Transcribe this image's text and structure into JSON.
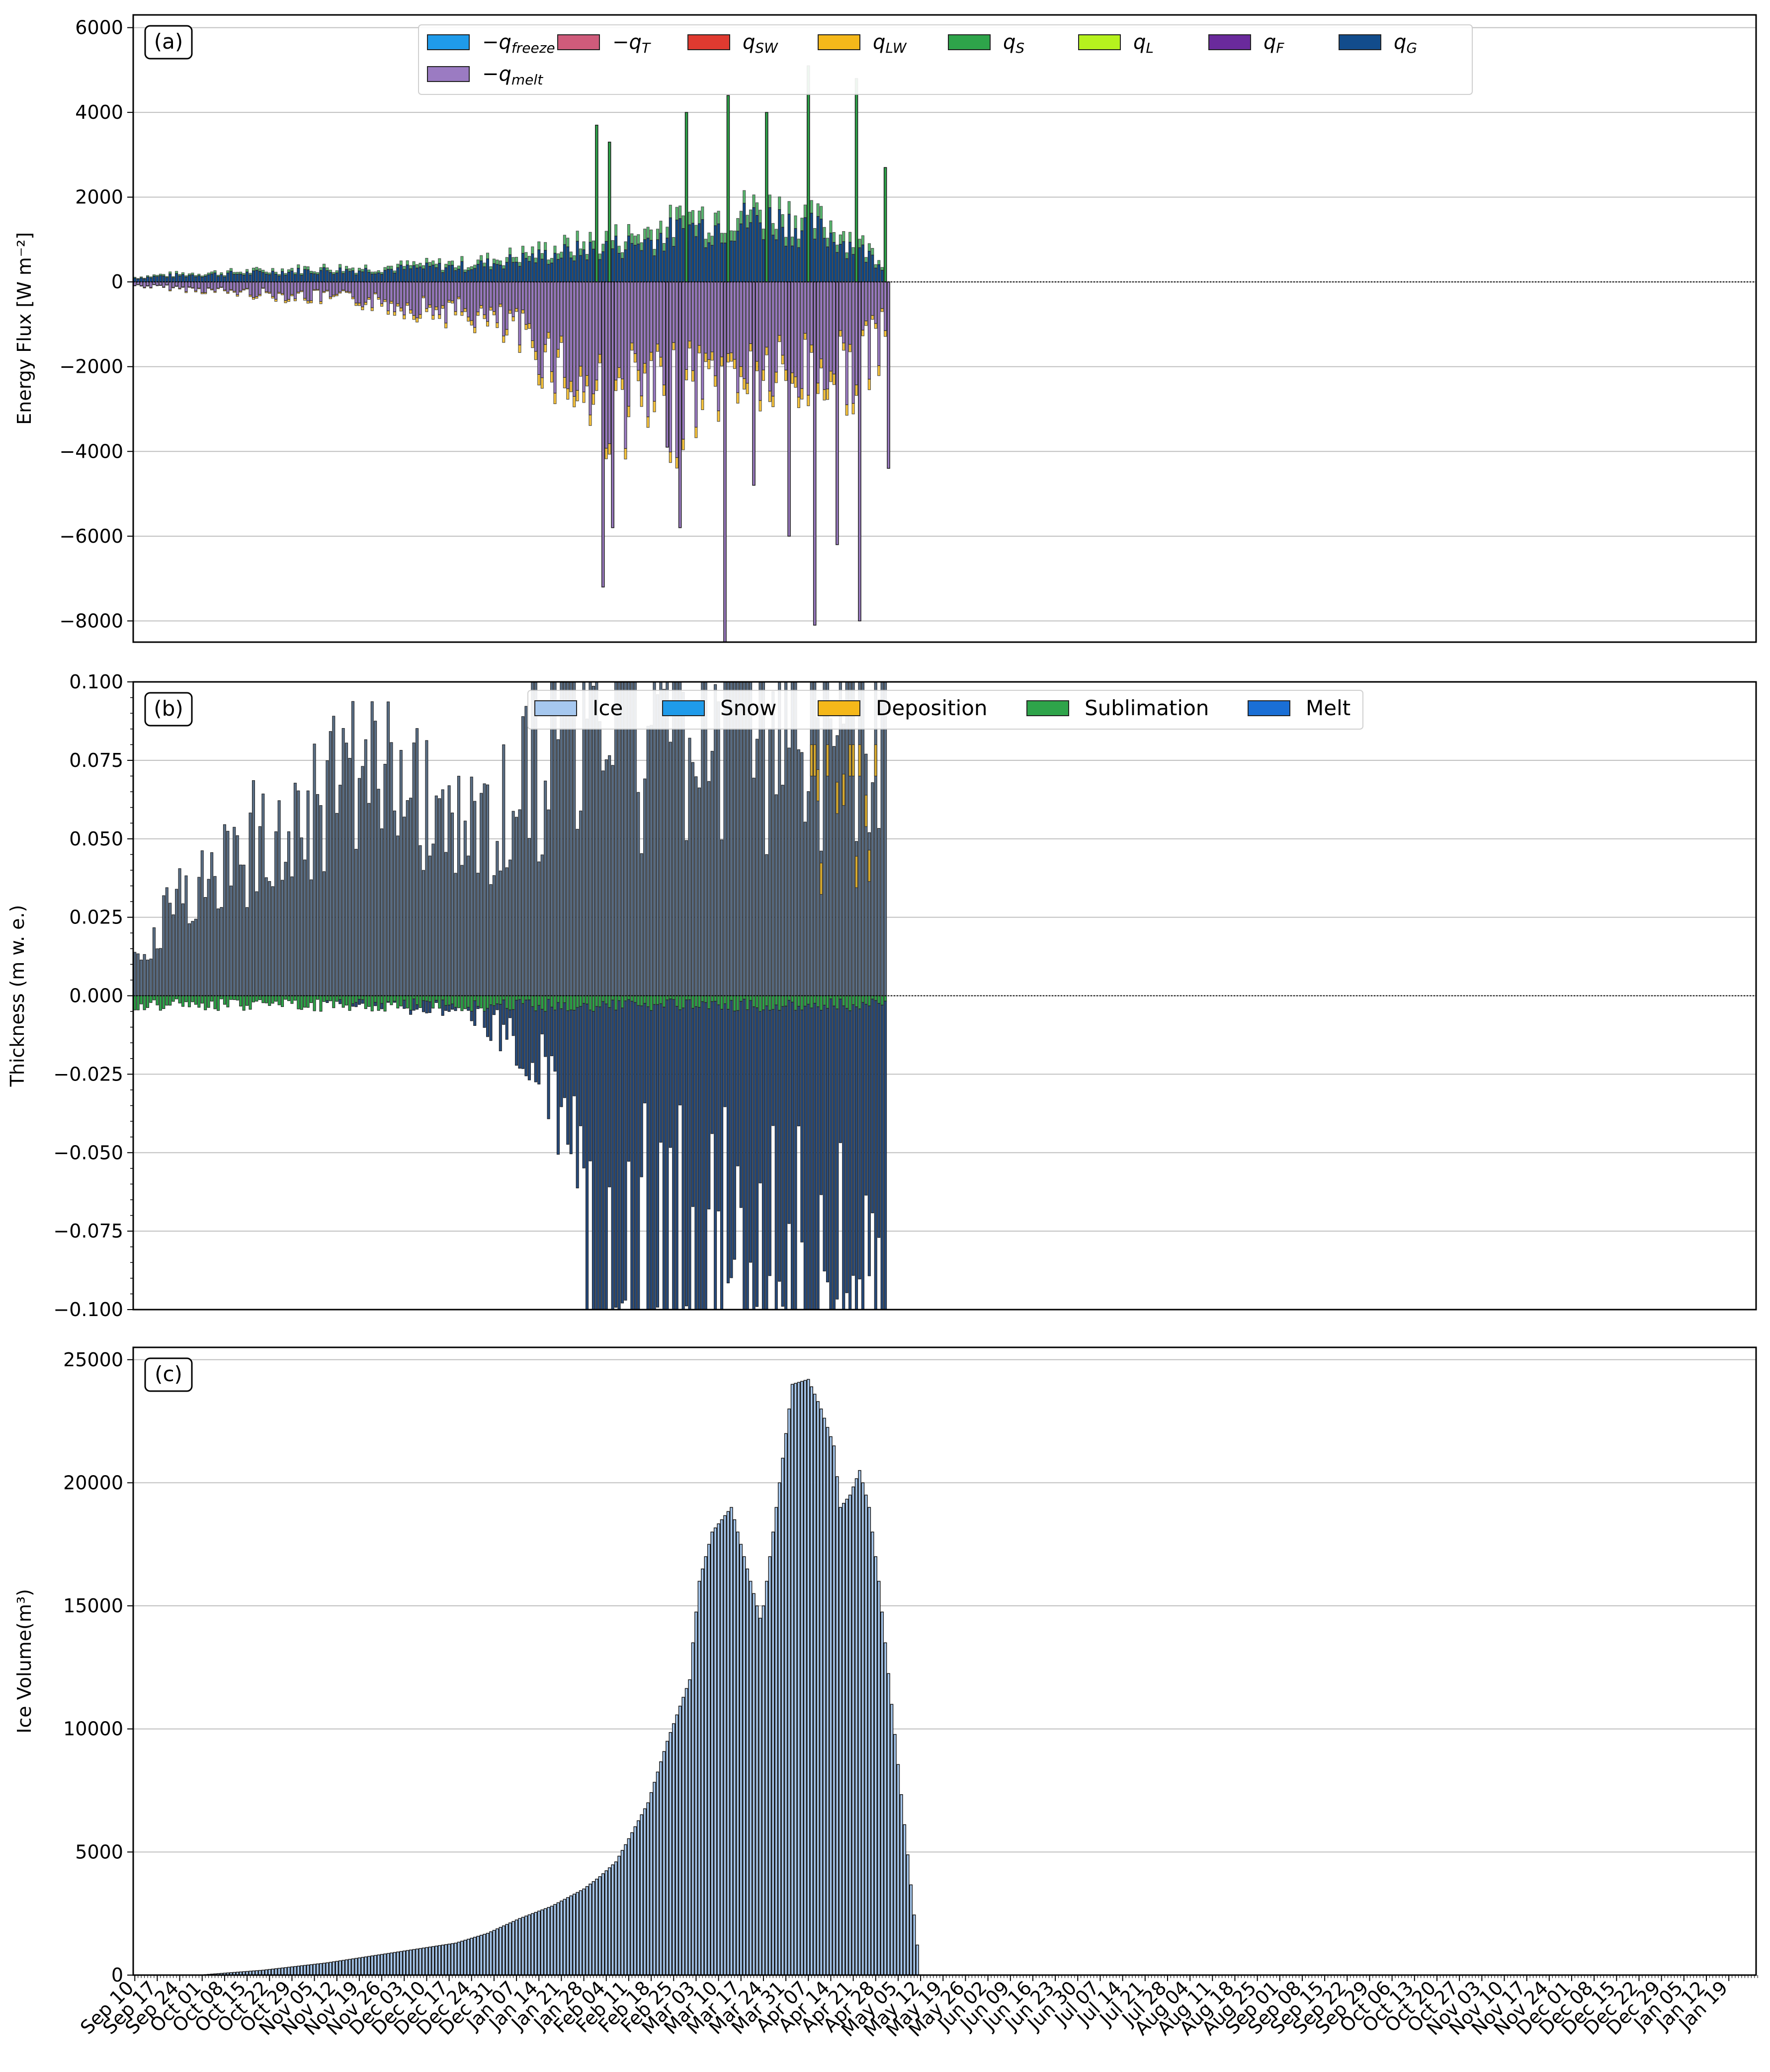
{
  "figure": {
    "colors": {
      "q_freeze": "#1f9bea",
      "q_melt": "#9b7bc2",
      "q_T": "#cf5b7b",
      "q_SW": "#e03a30",
      "q_LW": "#f5b81a",
      "q_S": "#2ea44a",
      "q_L": "#b6f21e",
      "q_F": "#6a2a9c",
      "q_G": "#124c8c",
      "ice": "#a6c8ef",
      "snow": "#1f9bea",
      "deposition": "#f5b81a",
      "sublimation": "#2ea44a",
      "melt": "#1a6fd6",
      "grid": "#c0c0c0",
      "bar_edge": "#1a1a1a"
    },
    "dates": [
      "Sep 10",
      "Sep 17",
      "Sep 24",
      "Oct 01",
      "Oct 08",
      "Oct 15",
      "Oct 22",
      "Oct 29",
      "Nov 05",
      "Nov 12",
      "Nov 19",
      "Nov 26",
      "Dec 03",
      "Dec 10",
      "Dec 17",
      "Dec 24",
      "Dec 31",
      "Jan 07",
      "Jan 14",
      "Jan 21",
      "Jan 28",
      "Feb 04",
      "Feb 11",
      "Feb 18",
      "Feb 25",
      "Mar 03",
      "Mar 10",
      "Mar 17",
      "Mar 24",
      "Mar 31",
      "Apr 07",
      "Apr 14",
      "Apr 21",
      "Apr 28",
      "May 05",
      "May 12",
      "May 19",
      "May 26",
      "Jun 02",
      "Jun 09",
      "Jun 16",
      "Jun 23",
      "Jun 30",
      "Jul 07",
      "Jul 14",
      "Jul 21",
      "Jul 28",
      "Aug 04",
      "Aug 11",
      "Aug 18",
      "Aug 25",
      "Sep 01",
      "Sep 08",
      "Sep 15",
      "Sep 22",
      "Sep 29",
      "Oct 06",
      "Oct 13",
      "Oct 20",
      "Oct 27",
      "Nov 03",
      "Nov 10",
      "Nov 17",
      "Nov 24",
      "Dec 01",
      "Dec 08",
      "Dec 15",
      "Dec 22",
      "Dec 29",
      "Jan 05",
      "Jan 12",
      "Jan 19"
    ]
  },
  "panels": {
    "a": {
      "label": "(a)",
      "ylabel": "Energy Flux [W m⁻²]",
      "ylim": [
        -8500,
        6300
      ],
      "yticks": [
        "6000",
        "4000",
        "2000",
        "0",
        "−2000",
        "−4000",
        "−6000",
        "−8000"
      ],
      "legend": [
        {
          "key": "q_freeze",
          "base": "−q",
          "sub": "freeze"
        },
        {
          "key": "q_T",
          "base": "−q",
          "sub": "T"
        },
        {
          "key": "q_SW",
          "base": "q",
          "sub": "SW"
        },
        {
          "key": "q_LW",
          "base": "q",
          "sub": "LW"
        },
        {
          "key": "q_S",
          "base": "q",
          "sub": "S"
        },
        {
          "key": "q_L",
          "base": "q",
          "sub": "L"
        },
        {
          "key": "q_F",
          "base": "q",
          "sub": "F"
        },
        {
          "key": "q_G",
          "base": "q",
          "sub": "G"
        },
        {
          "key": "q_melt",
          "base": "−q",
          "sub": "melt"
        }
      ]
    },
    "b": {
      "label": "(b)",
      "ylabel": "Thickness (m w. e.)",
      "ylim": [
        -0.1,
        0.1
      ],
      "yticks": [
        "0.100",
        "0.075",
        "0.050",
        "0.025",
        "0.000",
        "−0.025",
        "−0.050",
        "−0.075",
        "−0.100"
      ],
      "legend": [
        {
          "key": "ice",
          "text": "Ice"
        },
        {
          "key": "snow",
          "text": "Snow"
        },
        {
          "key": "deposition",
          "text": "Deposition"
        },
        {
          "key": "sublimation",
          "text": "Sublimation"
        },
        {
          "key": "melt",
          "text": "Melt"
        }
      ]
    },
    "c": {
      "label": "(c)",
      "ylabel": "Ice Volume(m³)",
      "ylim": [
        0,
        25500
      ],
      "yticks": [
        "25000",
        "20000",
        "15000",
        "10000",
        "5000",
        "0"
      ]
    }
  },
  "chart_data": [
    {
      "type": "bar",
      "panel": "a",
      "title": "",
      "ylabel": "Energy Flux [W m⁻²]",
      "ylim": [
        -8500,
        6300
      ],
      "grid": true,
      "legend_position": "top-center",
      "x_range_days": 506,
      "data_days": 235,
      "series": [
        {
          "name": "q_G (positive envelope)",
          "values": [
            100,
            150,
            180,
            200,
            220,
            250,
            280,
            300,
            300,
            320,
            350,
            380,
            400,
            500,
            600,
            700,
            800,
            900,
            1000,
            1200,
            1400,
            1500,
            1600,
            1600,
            1400,
            1200,
            800,
            400
          ]
        },
        {
          "name": "q_melt (negative envelope)",
          "values": [
            -100,
            -150,
            -200,
            -250,
            -300,
            -350,
            -400,
            -450,
            -500,
            -600,
            -700,
            -800,
            -900,
            -1200,
            -1600,
            -2200,
            -3000,
            -3500,
            -3200,
            -3800,
            -3000,
            -2600,
            -2400,
            -2800,
            -2600,
            -2400,
            -2500,
            -1200
          ]
        },
        {
          "name": "spikes",
          "values": [
            {
              "day": 144,
              "v": 3700
            },
            {
              "day": 146,
              "v": -7200
            },
            {
              "day": 148,
              "v": 3300
            },
            {
              "day": 149,
              "v": -5800
            },
            {
              "day": 166,
              "v": -3900
            },
            {
              "day": 170,
              "v": -5800
            },
            {
              "day": 172,
              "v": 4000
            },
            {
              "day": 184,
              "v": -8600
            },
            {
              "day": 185,
              "v": 4400
            },
            {
              "day": 193,
              "v": -4800
            },
            {
              "day": 197,
              "v": 4000
            },
            {
              "day": 204,
              "v": -6000
            },
            {
              "day": 210,
              "v": 5100
            },
            {
              "day": 212,
              "v": -8100
            },
            {
              "day": 219,
              "v": -6200
            },
            {
              "day": 225,
              "v": 4800
            },
            {
              "day": 226,
              "v": -8000
            },
            {
              "day": 234,
              "v": 2700
            },
            {
              "day": 235,
              "v": -4400
            }
          ]
        }
      ]
    },
    {
      "type": "bar",
      "panel": "b",
      "title": "",
      "ylabel": "Thickness (m w. e.)",
      "ylim": [
        -0.1,
        0.1
      ],
      "grid": true,
      "legend_position": "top-center",
      "series": [
        {
          "name": "Ice (positive envelope)",
          "values": [
            0.015,
            0.03,
            0.045,
            0.05,
            0.06,
            0.07,
            0.075,
            0.08,
            0.085,
            0.09,
            0.08,
            0.075,
            0.065,
            0.07,
            0.08,
            0.09,
            0.1,
            0.1,
            0.1,
            0.1,
            0.1,
            0.1,
            0.1,
            0.1,
            0.1,
            0.1,
            0.1,
            0.08,
            0.05
          ]
        },
        {
          "name": "Melt (negative envelope)",
          "values": [
            0,
            0,
            0,
            0,
            0,
            0,
            0,
            -0.002,
            -0.003,
            -0.004,
            -0.005,
            -0.005,
            -0.006,
            -0.01,
            -0.02,
            -0.035,
            -0.05,
            -0.08,
            -0.1,
            -0.1,
            -0.1,
            -0.1,
            -0.1,
            -0.1,
            -0.1,
            -0.1,
            -0.1,
            -0.1,
            -0.06
          ]
        }
      ]
    },
    {
      "type": "bar",
      "panel": "c",
      "title": "",
      "ylabel": "Ice Volume(m³)",
      "ylim": [
        0,
        25500
      ],
      "grid": true,
      "series": [
        {
          "name": "Ice Volume",
          "x_days": [
            0,
            20,
            25,
            40,
            60,
            80,
            100,
            110,
            120,
            130,
            140,
            145,
            150,
            153,
            160,
            166,
            173,
            174,
            176,
            180,
            186,
            190,
            195,
            196,
            200,
            205,
            210,
            214,
            218,
            220,
            223,
            226,
            229,
            232,
            236,
            245,
            260,
            506
          ],
          "values": [
            0,
            0,
            50,
            200,
            500,
            900,
            1300,
            1700,
            2300,
            2800,
            3500,
            4000,
            4600,
            5300,
            7000,
            9500,
            12000,
            13500,
            16000,
            18000,
            19000,
            17000,
            14500,
            15000,
            19000,
            24000,
            24200,
            23000,
            21500,
            19000,
            19500,
            20500,
            19000,
            16000,
            11000,
            0,
            0,
            0
          ]
        }
      ]
    }
  ]
}
